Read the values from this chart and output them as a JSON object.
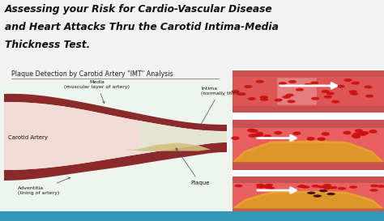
{
  "title_line1": "Assessing your Risk for Cardio-Vascular Disease",
  "title_line2": "and Heart Attacks Thru the Carotid Intima-Media",
  "title_line3": "Thickness Test.",
  "subtitle": "Plaque Detection by Carotid Artery \"IMT\" Analysis",
  "label_media": "Media\n(muscular layer of artery)",
  "label_intima": "Intima\n(normally thin)",
  "label_carotid": "Carotid Artery",
  "label_adventitia": "Adventitia\n(lining of artery)",
  "label_plaque": "Plaque",
  "bg_color": "#f2f2f2",
  "title_color": "#111111",
  "artery_wall_color": "#7a2020",
  "artery_lumen_color": "#f0c8c0",
  "artery_inner_color": "#e8d0c8",
  "plaque_color": "#d4a040",
  "blood_cell_color": "#cc1111",
  "blood_bg_color": "#d86060",
  "wall_outer_color": "#b04040",
  "bottom_bar_color": "#3399bb",
  "panel_bg": "#ffffff",
  "gap_color": "#ffffff"
}
